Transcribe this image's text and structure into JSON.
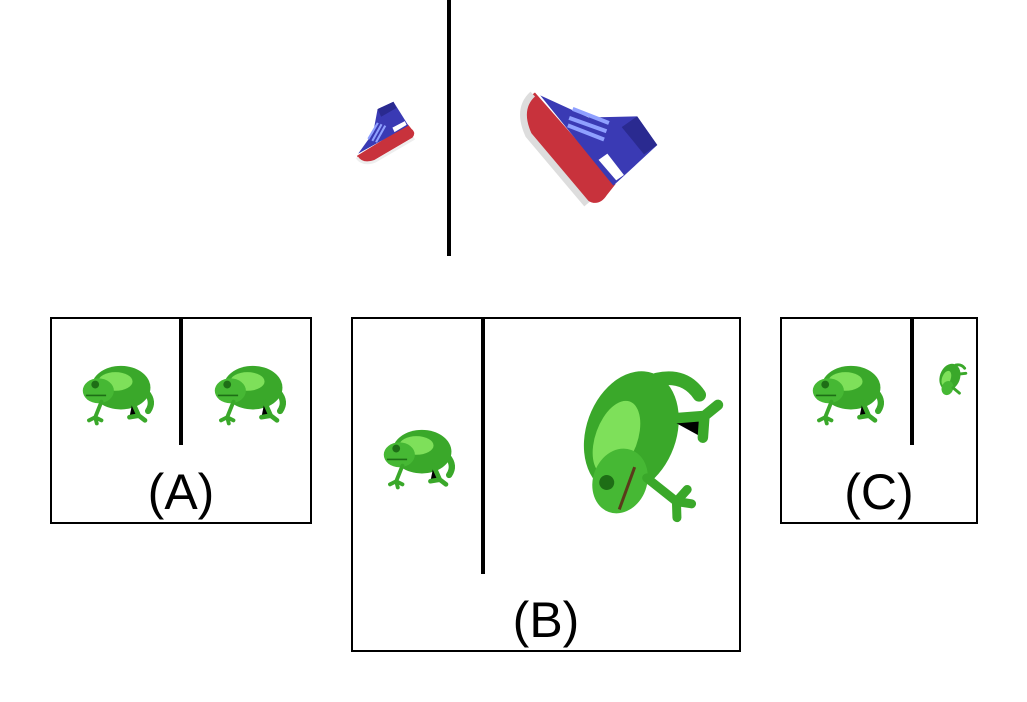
{
  "example": {
    "left_item": "sneaker",
    "right_item": "sneaker",
    "colors": {
      "sole": "#c8323c",
      "upper": "#3a3ab4"
    }
  },
  "options": [
    {
      "label": "(A)",
      "left_item": "frog",
      "right_item": "frog"
    },
    {
      "label": "(B)",
      "left_item": "frog",
      "right_item": "frog"
    },
    {
      "label": "(C)",
      "left_item": "frog",
      "right_item": "frog"
    }
  ],
  "colors": {
    "frog_body": "#3aa82a",
    "frog_light": "#7ee05a",
    "frog_dark": "#1e6e16",
    "divider": "#000000"
  }
}
